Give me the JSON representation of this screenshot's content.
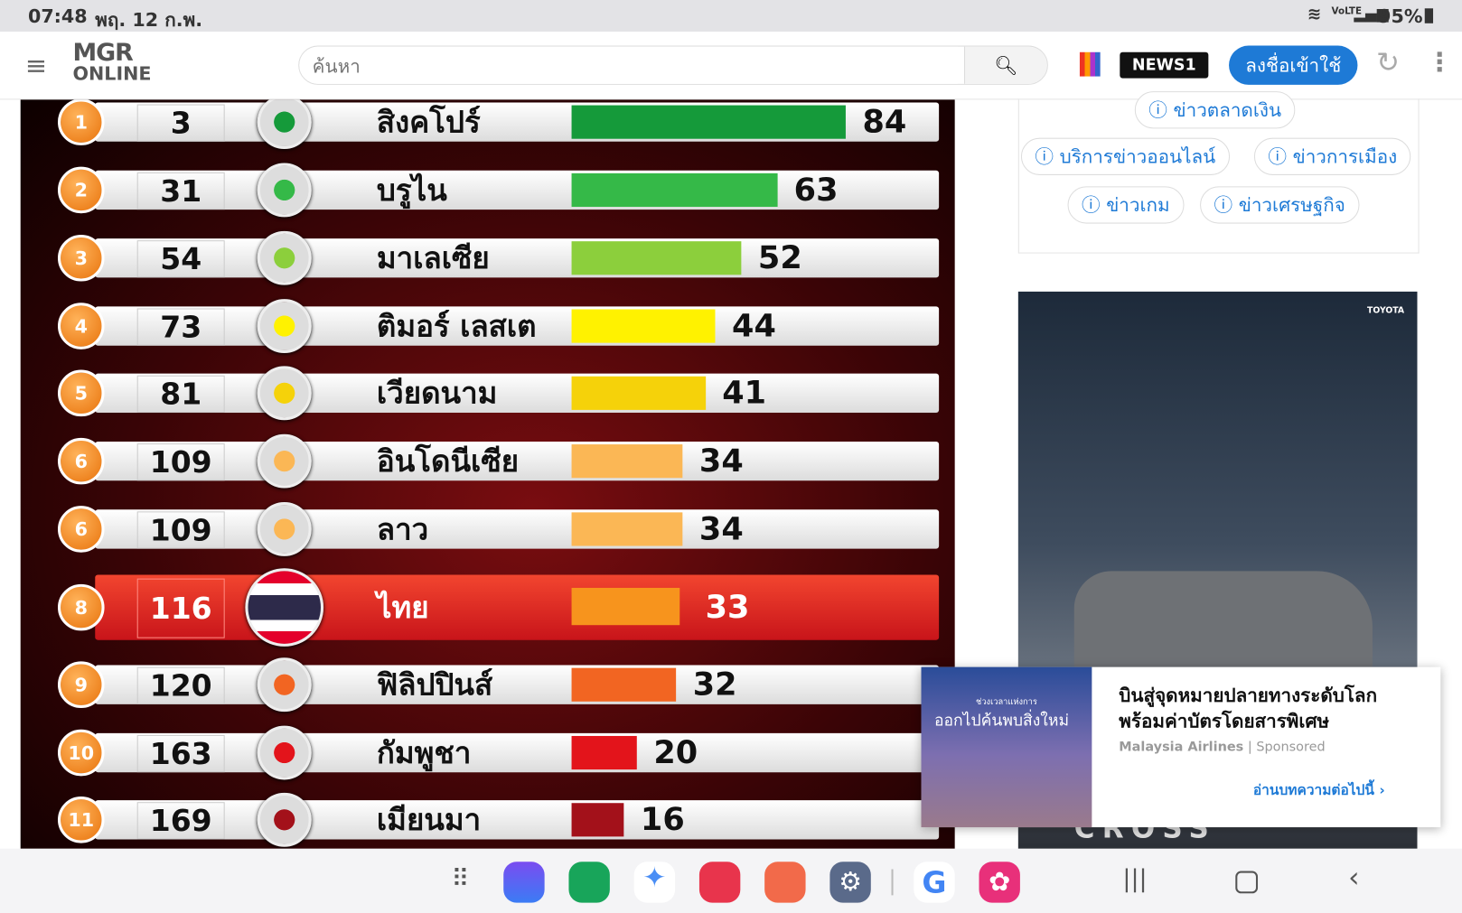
{
  "status": {
    "time": "07:48",
    "date": "พฤ. 12 ก.พ.",
    "battery": "95%",
    "network": "VoLTE"
  },
  "header": {
    "logo_top": "MGR",
    "logo_bottom": "ONLINE",
    "search_placeholder": "ค้นหา",
    "news_badge": "NEWS1",
    "login_label": "ลงชื่อเข้าใช้"
  },
  "ranking": [
    {
      "rank": "1",
      "world_rank": "3",
      "country": "สิงคโปร์",
      "score": 84,
      "color": "#159a3a"
    },
    {
      "rank": "2",
      "world_rank": "31",
      "country": "บรูไน",
      "score": 63,
      "color": "#35b948"
    },
    {
      "rank": "3",
      "world_rank": "54",
      "country": "มาเลเซีย",
      "score": 52,
      "color": "#8ccf3c"
    },
    {
      "rank": "4",
      "world_rank": "73",
      "country": "ติมอร์ เลสเต",
      "score": 44,
      "color": "#fff200"
    },
    {
      "rank": "5",
      "world_rank": "81",
      "country": "เวียดนาม",
      "score": 41,
      "color": "#f5d20a"
    },
    {
      "rank": "6",
      "world_rank": "109",
      "country": "อินโดนีเซีย",
      "score": 34,
      "color": "#fbb755"
    },
    {
      "rank": "6",
      "world_rank": "109",
      "country": "ลาว",
      "score": 34,
      "color": "#fbb755"
    },
    {
      "rank": "8",
      "world_rank": "116",
      "country": "ไทย",
      "score": 33,
      "color": "#f7941d",
      "highlight": true
    },
    {
      "rank": "9",
      "world_rank": "120",
      "country": "ฟิลิปปินส์",
      "score": 32,
      "color": "#f26522"
    },
    {
      "rank": "10",
      "world_rank": "163",
      "country": "กัมพูชา",
      "score": 20,
      "color": "#e3141b"
    },
    {
      "rank": "11",
      "world_rank": "169",
      "country": "เมียนมา",
      "score": 16,
      "color": "#a3111a"
    }
  ],
  "sidebar": {
    "tags": [
      "ข่าวตลาดเงิน",
      "บริการข่าวออนไลน์",
      "ข่าวการเมือง",
      "ข่าวเกม",
      "ข่าวเศรษฐกิจ"
    ]
  },
  "ad": {
    "brand": "TOYOTA",
    "bottom_text": "CROSS"
  },
  "popup": {
    "image_small": "ช่วงเวลาแห่งการ",
    "image_big": "ออกไปค้นพบสิ่งใหม่",
    "title": "บินสู่จุดหมายปลายทางระดับโลก พร้อมค่าบัตรโดยสารพิเศษ",
    "advertiser": "Malaysia Airlines",
    "sponsored": "Sponsored",
    "cta": "อ่านบทความต่อไปนี้ ›"
  }
}
